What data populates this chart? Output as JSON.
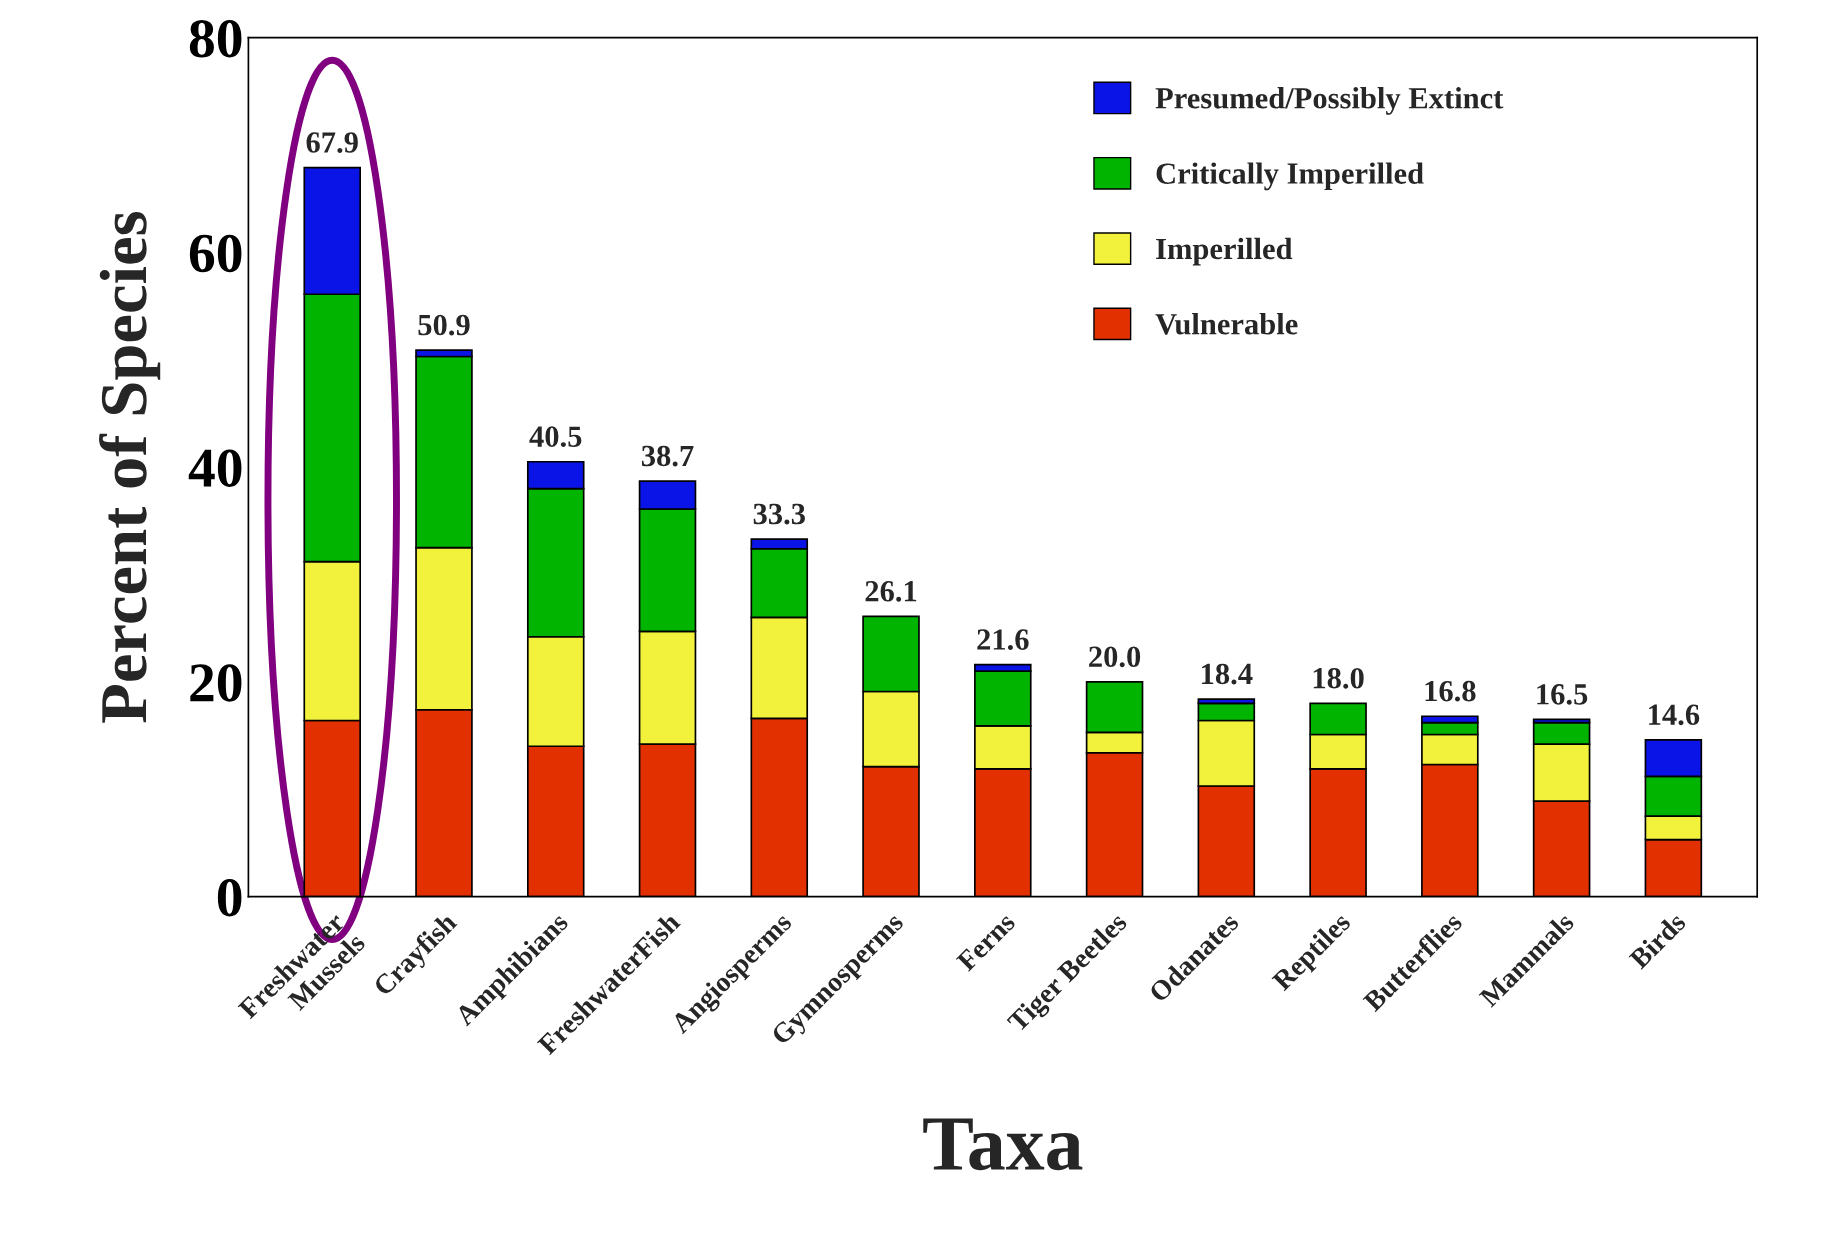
{
  "chart_data": {
    "type": "bar",
    "stacked": true,
    "xlabel": "Taxa",
    "ylabel": "Percent of Species",
    "categories": [
      "Freshwater\nMussels",
      "Crayfish",
      "Amphibians",
      "FreshwaterFish",
      "Angiosperms",
      "Gymnosperms",
      "Ferns",
      "Tiger Beetles",
      "Odanates",
      "Reptiles",
      "Butterflies",
      "Mammals",
      "Birds"
    ],
    "series": [
      {
        "name": "Vulnerable",
        "color": "#e23000",
        "values": [
          16.4,
          17.4,
          14.0,
          14.2,
          16.6,
          12.1,
          11.9,
          13.4,
          10.3,
          11.9,
          12.3,
          8.9,
          5.3
        ]
      },
      {
        "name": "Imperilled",
        "color": "#f2f23c",
        "values": [
          14.8,
          15.1,
          10.2,
          10.5,
          9.4,
          7.0,
          4.0,
          1.9,
          6.1,
          3.2,
          2.8,
          5.3,
          2.2
        ]
      },
      {
        "name": "Critically Imperilled",
        "color": "#00b400",
        "values": [
          24.9,
          17.8,
          13.8,
          11.4,
          6.4,
          7.0,
          5.1,
          4.7,
          1.6,
          2.9,
          1.1,
          2.0,
          3.7
        ]
      },
      {
        "name": "Presumed/Possibly Extinct",
        "color": "#0a14e6",
        "values": [
          11.8,
          0.6,
          2.5,
          2.6,
          0.9,
          null,
          0.6,
          null,
          0.4,
          null,
          0.6,
          0.3,
          3.4
        ]
      }
    ],
    "totals": [
      "67.9",
      "50.9",
      "40.5",
      "38.7",
      "33.3",
      "26.1",
      "21.6",
      "20.0",
      "18.4",
      "18.0",
      "16.8",
      "16.5",
      "14.6"
    ],
    "ylim": [
      0,
      80
    ],
    "yticks": [
      0,
      20,
      40,
      60,
      80
    ],
    "grid": false,
    "legend": "top right"
  }
}
